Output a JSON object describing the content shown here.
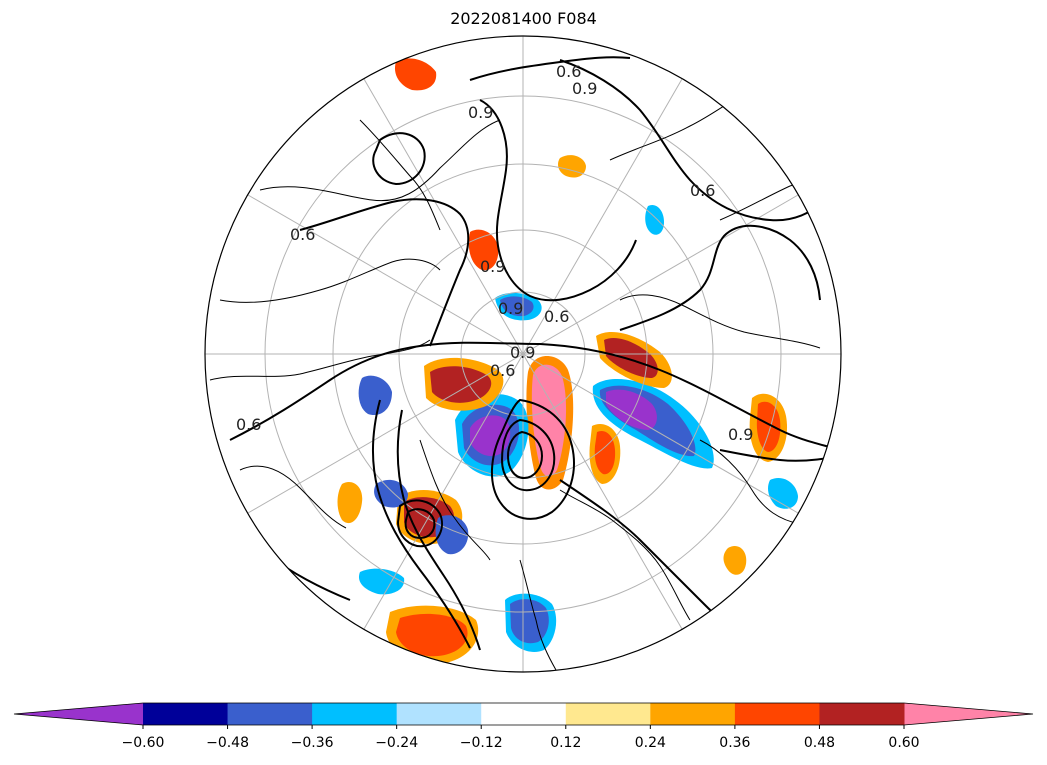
{
  "title": "2022081400 F084",
  "chart_data": {
    "type": "heatmap",
    "title": "2022081400 F084",
    "projection": "north-polar-stereographic",
    "colorbar": {
      "extend": "both",
      "levels": [
        -0.6,
        -0.48,
        -0.36,
        -0.24,
        -0.12,
        0.12,
        0.24,
        0.36,
        0.48,
        0.6
      ],
      "tick_labels": [
        "−0.60",
        "−0.48",
        "−0.36",
        "−0.24",
        "−0.12",
        "0.12",
        "0.24",
        "0.36",
        "0.48",
        "0.60"
      ],
      "colors": [
        "#9933cc",
        "#000099",
        "#3a5fcd",
        "#00bfff",
        "#b0e2ff",
        "#ffffff",
        "#ffe88f",
        "#ffa500",
        "#ff4500",
        "#b22222",
        "#ff83a8"
      ]
    },
    "contour_labels": [
      "0.6",
      "0.9",
      "0.6",
      "0.9",
      "0.6",
      "0.9",
      "0.6",
      "0.9",
      "0.6",
      "0.9",
      "0.6",
      "0.9"
    ],
    "grid": true
  }
}
